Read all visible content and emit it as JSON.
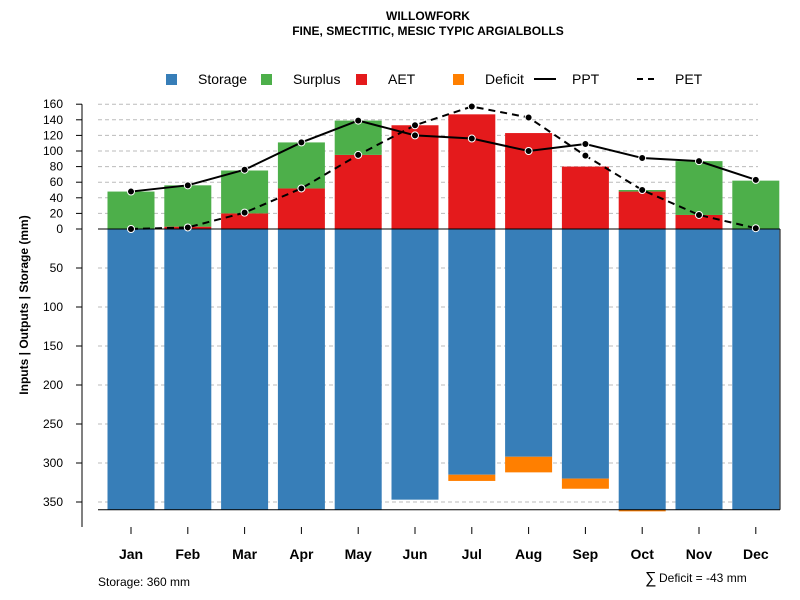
{
  "chart_data": {
    "type": "bar",
    "title": "WILLOWFORK",
    "subtitle": "FINE, SMECTITIC, MESIC TYPIC ARGIALBOLLS",
    "ylabel": "Inputs | Outputs | Storage     (mm)",
    "categories": [
      "Jan",
      "Feb",
      "Mar",
      "Apr",
      "May",
      "Jun",
      "Jul",
      "Aug",
      "Sep",
      "Oct",
      "Nov",
      "Dec"
    ],
    "upper_ticks": [
      "160",
      "140",
      "120",
      "100",
      "80",
      "60",
      "40",
      "20",
      "0"
    ],
    "lower_ticks": [
      "50",
      "100",
      "150",
      "200",
      "250",
      "300",
      "350"
    ],
    "ylim_upper": [
      0,
      160
    ],
    "ylim_lower": [
      0,
      360
    ],
    "series": {
      "aet": [
        0,
        3,
        20,
        52,
        95,
        133,
        147,
        123,
        80,
        48,
        18,
        0
      ],
      "surplus": [
        48,
        53,
        55,
        59,
        44,
        0,
        0,
        0,
        0,
        2,
        69,
        62
      ],
      "storage": [
        360,
        360,
        360,
        360,
        360,
        347,
        315,
        292,
        320,
        360,
        360,
        360
      ],
      "deficit": [
        0,
        0,
        0,
        0,
        0,
        0,
        8,
        20,
        13,
        2,
        0,
        0
      ],
      "ppt": [
        48,
        56,
        76,
        111,
        139,
        120,
        116,
        100,
        109,
        91,
        87,
        63
      ],
      "pet": [
        0,
        2,
        21,
        52,
        95,
        133,
        157,
        143,
        94,
        50,
        18,
        1
      ]
    },
    "legend": [
      {
        "key": "storage",
        "label": "Storage",
        "symbol": "square",
        "color": "#377EB8"
      },
      {
        "key": "surplus",
        "label": "Surplus",
        "symbol": "square",
        "color": "#4DAF4A"
      },
      {
        "key": "aet",
        "label": "AET",
        "symbol": "square",
        "color": "#E41A1C"
      },
      {
        "key": "deficit",
        "label": "Deficit",
        "symbol": "square",
        "color": "#FF7F00"
      },
      {
        "key": "ppt",
        "label": "PPT",
        "symbol": "solid-line",
        "color": "#000000"
      },
      {
        "key": "pet",
        "label": "PET",
        "symbol": "dashed-line",
        "color": "#000000"
      }
    ],
    "legend_position": "top-center",
    "grid": true,
    "colors": {
      "storage": "#377EB8",
      "surplus": "#4DAF4A",
      "aet": "#E41A1C",
      "deficit": "#FF7F00",
      "line": "#000000",
      "grid": "#BBBBBB"
    }
  },
  "footer": {
    "storage_label": "Storage: 360 mm",
    "deficit_symbol": "∑",
    "deficit_label": "Deficit = -43 mm"
  }
}
